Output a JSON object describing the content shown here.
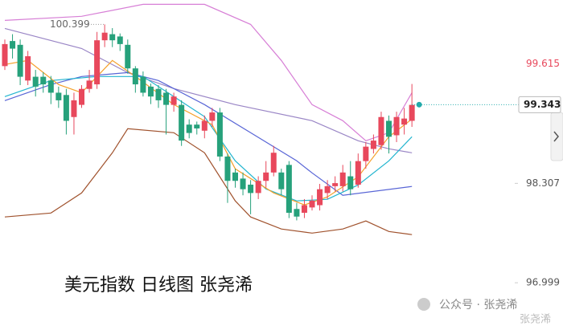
{
  "chart_data": {
    "type": "candlestick",
    "title": "美元指数 日线图 张尧浠",
    "watermark": [
      "公众号 · 张尧浠",
      "张尧浠"
    ],
    "up_color": "#e8485c",
    "down_color": "#26a17b",
    "ylim": [
      96.43,
      100.72
    ],
    "yticks": [
      96.999,
      98.307
    ],
    "high_price": 99.615,
    "last_price": 99.343,
    "max_label": 100.399,
    "open": [
      99.85,
      100.18,
      100.13,
      99.66,
      99.71,
      99.71,
      99.66,
      99.5,
      99.47,
      99.18,
      99.34,
      99.55,
      99.61,
      100.19,
      100.27,
      100.24,
      100.13,
      99.82,
      99.71,
      99.58,
      99.55,
      99.5,
      99.34,
      99.34,
      99.08,
      99.08,
      99.0,
      99.13,
      99.24,
      98.66,
      98.45,
      98.37,
      98.29,
      98.18,
      98.34,
      98.45,
      98.45,
      98.55,
      97.97,
      97.92,
      97.99,
      98.02,
      98.18,
      98.27,
      98.27,
      98.4,
      98.29,
      98.6,
      98.76,
      98.81,
      99.13,
      98.94,
      99.08,
      99.13
    ],
    "high": [
      100.2,
      100.27,
      100.2,
      100.05,
      99.8,
      99.77,
      99.72,
      99.58,
      99.55,
      99.5,
      99.6,
      99.8,
      100.3,
      100.399,
      100.35,
      100.28,
      100.2,
      99.85,
      99.78,
      99.62,
      99.6,
      99.55,
      99.5,
      99.4,
      99.15,
      99.12,
      99.2,
      99.3,
      99.3,
      98.7,
      98.5,
      98.45,
      98.35,
      98.4,
      98.6,
      98.8,
      98.5,
      98.6,
      98.05,
      98.1,
      98.15,
      98.3,
      98.35,
      98.4,
      98.55,
      98.6,
      98.7,
      98.85,
      98.95,
      99.25,
      99.2,
      99.25,
      99.3,
      99.615
    ],
    "low": [
      99.8,
      99.95,
      99.6,
      99.6,
      99.45,
      99.5,
      99.35,
      99.3,
      98.95,
      98.95,
      99.3,
      99.5,
      99.55,
      100.1,
      100.1,
      100.05,
      99.75,
      99.5,
      99.45,
      99.35,
      99.3,
      98.95,
      99.25,
      98.8,
      98.9,
      98.95,
      98.9,
      99.05,
      98.6,
      98.05,
      98.25,
      98.15,
      97.9,
      98.1,
      98.25,
      98.4,
      98.15,
      97.85,
      97.82,
      97.85,
      97.95,
      97.95,
      98.1,
      98.2,
      98.2,
      98.15,
      98.25,
      98.5,
      98.7,
      98.75,
      98.7,
      98.85,
      98.95,
      99.05
    ],
    "close": [
      100.14,
      100.08,
      99.71,
      99.98,
      99.58,
      99.61,
      99.5,
      99.4,
      99.13,
      99.4,
      99.55,
      99.66,
      100.19,
      100.29,
      100.19,
      100.14,
      99.82,
      99.61,
      99.5,
      99.45,
      99.4,
      99.34,
      99.45,
      98.87,
      98.97,
      99.03,
      99.13,
      99.24,
      98.66,
      98.34,
      98.34,
      98.23,
      98.18,
      98.34,
      98.45,
      98.71,
      98.23,
      97.92,
      97.87,
      98.02,
      98.08,
      98.23,
      98.27,
      98.31,
      98.45,
      98.23,
      98.6,
      98.79,
      98.87,
      99.18,
      98.92,
      99.18,
      99.16,
      99.34
    ],
    "lines": [
      {
        "color": "#d77fd6",
        "x": [
          0,
          10,
          18,
          26,
          32,
          36,
          40,
          44,
          47,
          50,
          53
        ],
        "values": [
          100.452,
          100.505,
          100.663,
          100.663,
          100.399,
          99.924,
          99.343,
          99.132,
          98.868,
          98.973,
          99.501
        ]
      },
      {
        "color": "#a0522d",
        "x": [
          0,
          6,
          10,
          14,
          16,
          22,
          26,
          30,
          32,
          36,
          40,
          44,
          47,
          50,
          53
        ],
        "values": [
          97.865,
          97.917,
          98.181,
          98.709,
          99.026,
          98.973,
          98.709,
          98.076,
          97.865,
          97.706,
          97.653,
          97.706,
          97.812,
          97.674,
          97.632
        ]
      },
      {
        "color": "#9a86c6",
        "x": [
          0,
          10,
          16,
          22,
          30,
          40,
          46,
          50,
          53
        ],
        "values": [
          100.346,
          100.082,
          99.765,
          99.554,
          99.343,
          99.132,
          98.868,
          98.762,
          98.709
        ]
      },
      {
        "color": "#5865d6",
        "x": [
          0,
          6,
          10,
          16,
          20,
          26,
          32,
          38,
          40,
          44,
          53
        ],
        "values": [
          99.396,
          99.607,
          99.713,
          99.765,
          99.66,
          99.343,
          98.973,
          98.604,
          98.445,
          98.15,
          98.266
        ]
      },
      {
        "color": "#22b5cf",
        "x": [
          0,
          6,
          12,
          18,
          22,
          26,
          30,
          34,
          38,
          42,
          46,
          50,
          53
        ],
        "values": [
          99.449,
          99.66,
          99.713,
          99.713,
          99.449,
          99.185,
          98.604,
          98.234,
          98.076,
          98.097,
          98.287,
          98.604,
          98.921
        ]
      },
      {
        "color": "#f5a02a",
        "x": [
          0,
          3,
          7,
          10,
          14,
          17,
          22,
          27,
          30,
          35,
          39,
          42,
          46,
          50,
          53
        ],
        "values": [
          99.871,
          99.924,
          99.607,
          99.501,
          99.924,
          99.713,
          99.343,
          99.079,
          98.498,
          98.181,
          98.023,
          98.129,
          98.393,
          98.921,
          99.153
        ]
      }
    ]
  }
}
